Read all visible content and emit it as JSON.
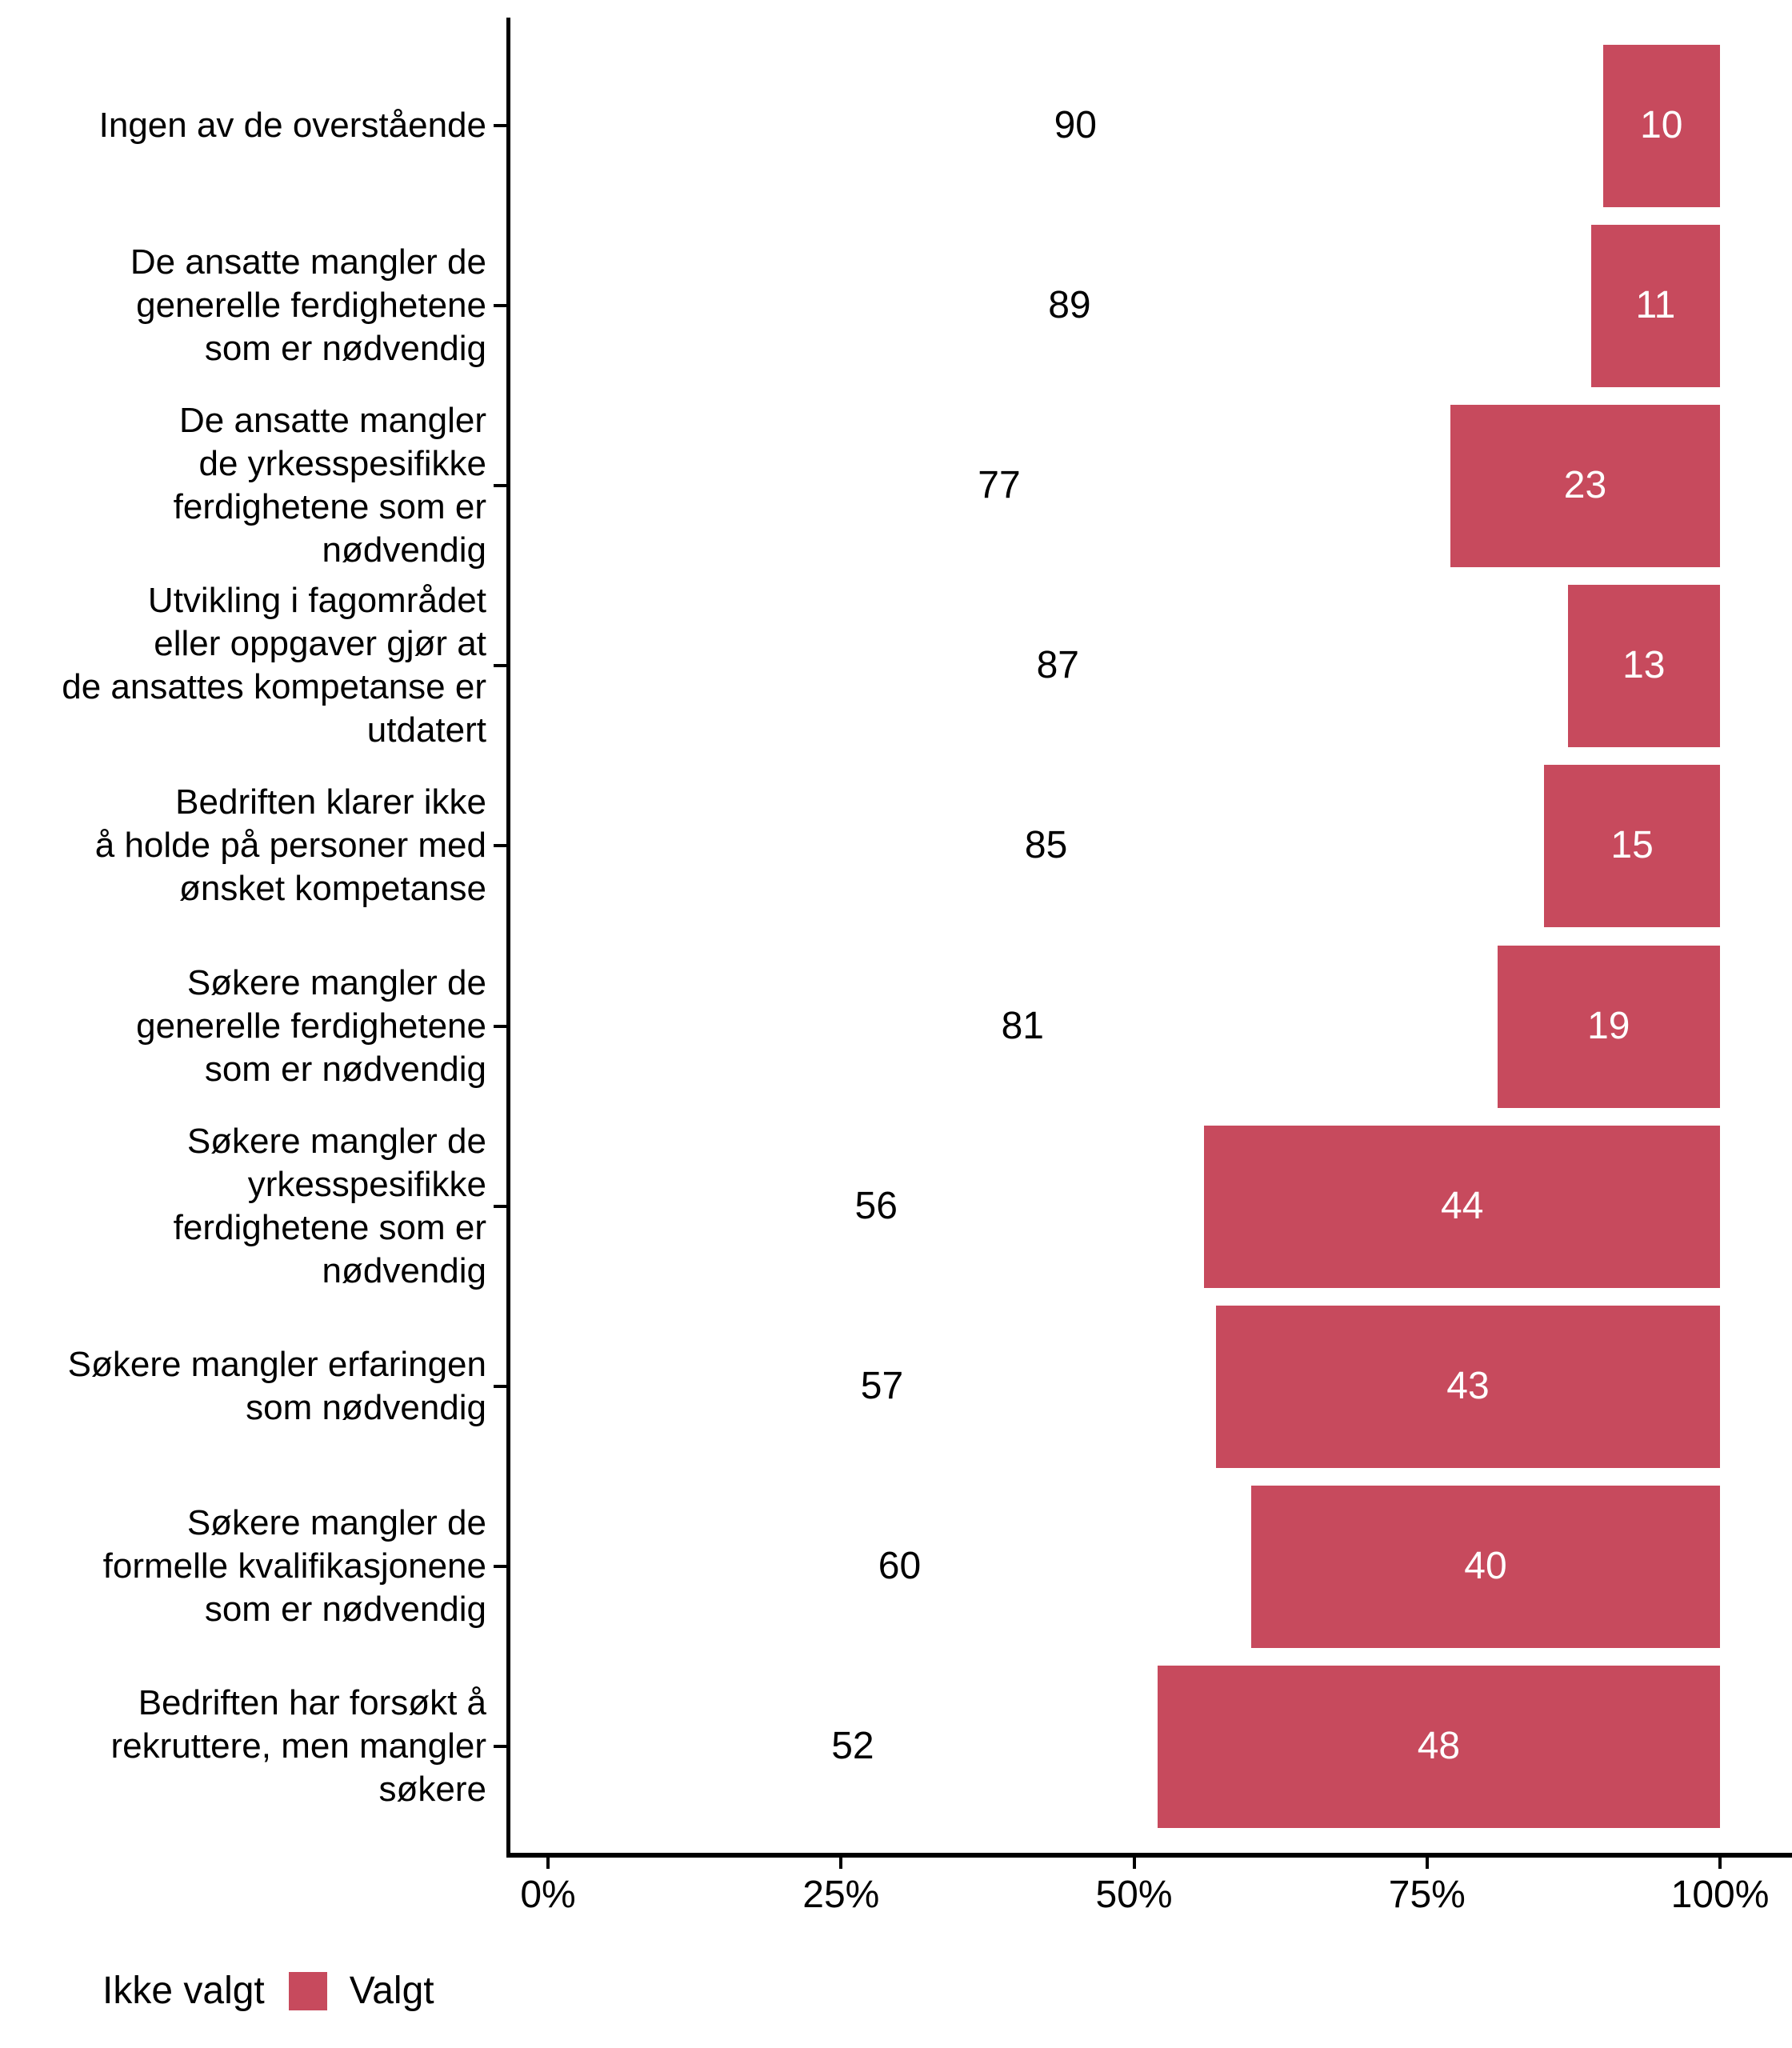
{
  "chart_data": {
    "type": "bar",
    "orientation": "horizontal",
    "stacked": true,
    "title": "",
    "xlabel": "",
    "ylabel": "",
    "xlim": [
      0,
      100
    ],
    "x_tick_values": [
      0,
      25,
      50,
      75,
      100
    ],
    "x_tick_labels": [
      "0%",
      "25%",
      "50%",
      "75%",
      "100%"
    ],
    "grid": false,
    "legend_position": "bottom-left",
    "categories": [
      {
        "label": "Ingen av de overstående",
        "lines": [
          "Ingen av de overstående"
        ]
      },
      {
        "label": "De ansatte mangler de generelle ferdighetene som er nødvendig",
        "lines": [
          "De ansatte mangler de",
          "generelle ferdighetene",
          "som er nødvendig"
        ]
      },
      {
        "label": "De ansatte mangler de yrkesspesifikke ferdighetene som er nødvendig",
        "lines": [
          "De ansatte mangler",
          "de yrkesspesifikke",
          "ferdighetene som er",
          "nødvendig"
        ]
      },
      {
        "label": "Utvikling i fagområdet eller oppgaver gjør at de ansattes kompetanse er utdatert",
        "lines": [
          "Utvikling i fagområdet",
          "eller oppgaver gjør at",
          "de ansattes kompetanse er",
          "utdatert"
        ]
      },
      {
        "label": "Bedriften klarer ikke å holde på personer med ønsket kompetanse",
        "lines": [
          "Bedriften klarer ikke",
          "å holde på personer med",
          "ønsket kompetanse"
        ]
      },
      {
        "label": "Søkere mangler de generelle ferdighetene som er nødvendig",
        "lines": [
          "Søkere mangler de",
          "generelle ferdighetene",
          "som er nødvendig"
        ]
      },
      {
        "label": "Søkere mangler de yrkesspesifikke ferdighetene som er nødvendig",
        "lines": [
          "Søkere mangler de",
          "yrkesspesifikke",
          "ferdighetene som er",
          "nødvendig"
        ]
      },
      {
        "label": "Søkere mangler erfaringen som nødvendig",
        "lines": [
          "Søkere mangler erfaringen",
          "som nødvendig"
        ]
      },
      {
        "label": "Søkere mangler de formelle kvalifikasjonene som er nødvendig",
        "lines": [
          "Søkere mangler de",
          "formelle kvalifikasjonene",
          "som er nødvendig"
        ]
      },
      {
        "label": "Bedriften har forsøkt å rekruttere, men mangler søkere",
        "lines": [
          "Bedriften har forsøkt å",
          "rekruttere, men mangler",
          "søkere"
        ]
      }
    ],
    "series": [
      {
        "name": "Ikke valgt",
        "color": "#ffffff",
        "label_color": "#000000",
        "values": [
          90,
          89,
          77,
          87,
          85,
          81,
          56,
          57,
          60,
          52
        ]
      },
      {
        "name": "Valgt",
        "color": "#c74a5d",
        "label_color": "#ffffff",
        "values": [
          10,
          11,
          23,
          13,
          15,
          19,
          44,
          43,
          40,
          48
        ]
      }
    ]
  },
  "legend": {
    "items": [
      {
        "label": "Ikke valgt",
        "color": "#ffffff"
      },
      {
        "label": "Valgt",
        "color": "#c74a5d"
      }
    ]
  },
  "colors": {
    "background": "#ffffff",
    "axis": "#000000",
    "text": "#000000",
    "bar_valgt": "#c74a5d"
  }
}
